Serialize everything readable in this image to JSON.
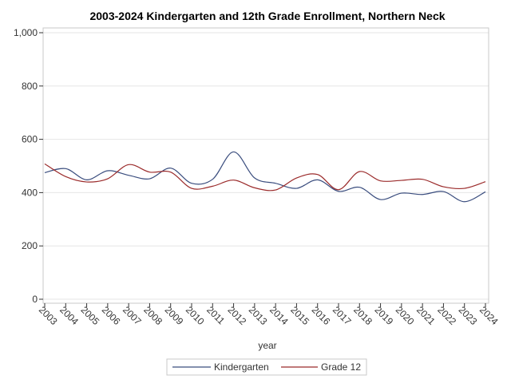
{
  "chart_data": {
    "type": "line",
    "title": "2003-2024 Kindergarten and 12th Grade Enrollment, Northern Neck",
    "xlabel": "year",
    "ylabel": "",
    "x": [
      "2003",
      "2004",
      "2005",
      "2006",
      "2007",
      "2008",
      "2009",
      "2010",
      "2011",
      "2012",
      "2013",
      "2014",
      "2015",
      "2016",
      "2017",
      "2018",
      "2019",
      "2020",
      "2021",
      "2022",
      "2023",
      "2024"
    ],
    "ylim": [
      0,
      1000
    ],
    "yticks": [
      {
        "value": 0,
        "label": "0"
      },
      {
        "value": 200,
        "label": "200"
      },
      {
        "value": 400,
        "label": "400"
      },
      {
        "value": 600,
        "label": "600"
      },
      {
        "value": 800,
        "label": "800"
      },
      {
        "value": 1000,
        "label": "1,000"
      }
    ],
    "grid": true,
    "legend_position": "bottom",
    "series": [
      {
        "name": "Kindergarten",
        "color": "#3a4d7e",
        "values": [
          475,
          490,
          448,
          482,
          465,
          452,
          492,
          435,
          450,
          553,
          455,
          435,
          416,
          448,
          405,
          420,
          374,
          398,
          393,
          404,
          366,
          403
        ]
      },
      {
        "name": "Grade 12",
        "color": "#9b2b2b",
        "values": [
          508,
          460,
          440,
          452,
          505,
          477,
          477,
          416,
          424,
          447,
          418,
          410,
          455,
          468,
          411,
          479,
          444,
          446,
          450,
          422,
          416,
          441
        ]
      }
    ]
  }
}
